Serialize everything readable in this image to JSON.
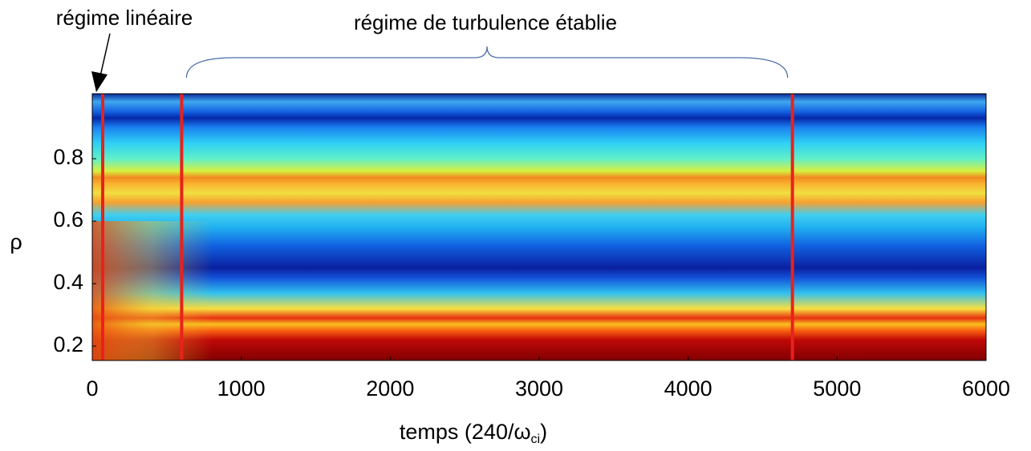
{
  "chart_data": {
    "type": "heatmap",
    "annotations": [
      "régime linéaire",
      "régime de turbulence établie"
    ],
    "x_label": {
      "text": "temps (240/ω",
      "subscript": "ci",
      "suffix": ")"
    },
    "y_label": "ρ",
    "xlim": [
      0,
      6000
    ],
    "xticks": [
      0,
      1000,
      2000,
      3000,
      4000,
      5000,
      6000
    ],
    "ylim": [
      0.154,
      1.008
    ],
    "yticks": [
      0.2,
      0.4,
      0.6,
      0.8
    ],
    "markers": {
      "color": "#e8221c",
      "x": [
        70,
        600,
        4700
      ]
    }
  }
}
